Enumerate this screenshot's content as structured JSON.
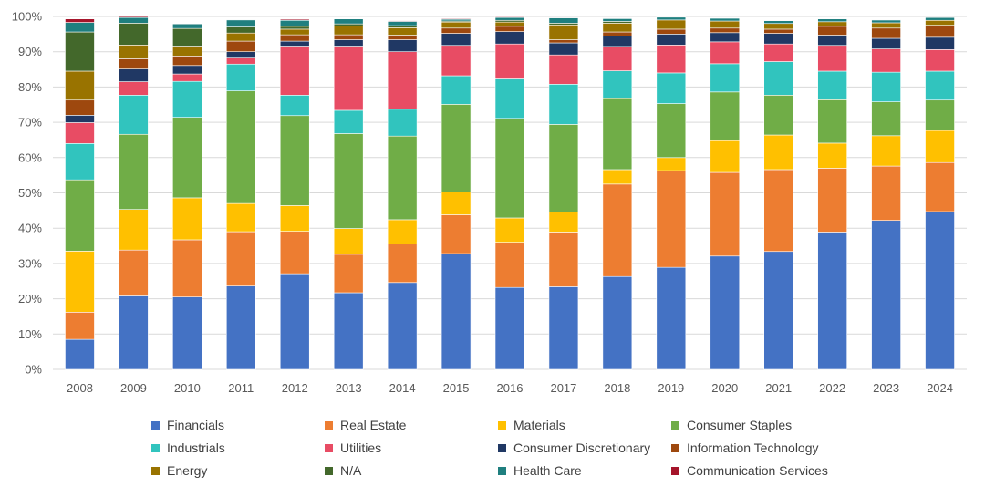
{
  "chart_data": {
    "type": "bar",
    "stacked": true,
    "percent": true,
    "title": "",
    "xlabel": "",
    "ylabel": "",
    "ylim": [
      0,
      100
    ],
    "yticks": [
      "0%",
      "10%",
      "20%",
      "30%",
      "40%",
      "50%",
      "60%",
      "70%",
      "80%",
      "90%",
      "100%"
    ],
    "grid": true,
    "legend_position": "bottom",
    "categories": [
      "2008",
      "2009",
      "2010",
      "2011",
      "2012",
      "2013",
      "2014",
      "2015",
      "2016",
      "2017",
      "2018",
      "2019",
      "2020",
      "2021",
      "2022",
      "2023",
      "2024"
    ],
    "series": [
      {
        "name": "Financials",
        "color": "#4472c4",
        "values": [
          8.5,
          20.8,
          20.5,
          23.6,
          27.1,
          21.7,
          24.6,
          32.8,
          23.2,
          23.4,
          26.3,
          28.9,
          32.1,
          33.4,
          38.9,
          42.2,
          44.7
        ]
      },
      {
        "name": "Real Estate",
        "color": "#ed7d31",
        "values": [
          7.7,
          13.0,
          16.2,
          15.4,
          12.0,
          10.9,
          10.9,
          11.0,
          12.8,
          15.5,
          26.2,
          27.4,
          23.7,
          23.2,
          18.1,
          15.4,
          13.9
        ]
      },
      {
        "name": "Materials",
        "color": "#ffc000",
        "values": [
          17.3,
          11.5,
          11.9,
          8.0,
          7.3,
          7.3,
          6.9,
          6.5,
          6.9,
          5.7,
          4.1,
          3.7,
          9.0,
          9.8,
          7.1,
          8.6,
          9.1
        ]
      },
      {
        "name": "Consumer Staples",
        "color": "#70ad47",
        "values": [
          20.2,
          21.3,
          22.8,
          31.9,
          25.5,
          26.9,
          23.7,
          24.8,
          28.2,
          24.8,
          20.1,
          15.3,
          13.8,
          11.3,
          12.3,
          9.6,
          8.6
        ]
      },
      {
        "name": "Industrials",
        "color": "#31c4be",
        "values": [
          10.3,
          11.1,
          10.2,
          7.6,
          5.8,
          6.6,
          7.6,
          8.1,
          11.2,
          11.4,
          7.9,
          8.7,
          8.0,
          9.5,
          8.1,
          8.4,
          8.2
        ]
      },
      {
        "name": "Utilities",
        "color": "#e84c64",
        "values": [
          5.9,
          3.8,
          2.1,
          1.7,
          13.9,
          18.2,
          16.3,
          8.6,
          9.9,
          8.3,
          6.9,
          7.9,
          6.2,
          5.0,
          7.3,
          6.6,
          6.1
        ]
      },
      {
        "name": "Consumer Discretionary",
        "color": "#203864",
        "values": [
          2.1,
          3.6,
          2.4,
          1.8,
          1.4,
          1.8,
          3.4,
          3.4,
          3.5,
          3.4,
          2.9,
          3.1,
          2.6,
          3.0,
          2.9,
          3.0,
          3.5
        ]
      },
      {
        "name": "Information Technology",
        "color": "#9e480e",
        "values": [
          4.3,
          2.9,
          2.7,
          3.0,
          1.8,
          1.4,
          1.3,
          1.5,
          1.5,
          0.9,
          1.2,
          1.4,
          1.3,
          1.2,
          2.5,
          2.9,
          3.4
        ]
      },
      {
        "name": "Energy",
        "color": "#997300",
        "values": [
          8.2,
          3.9,
          2.8,
          2.3,
          1.6,
          2.5,
          2.1,
          1.7,
          1.2,
          4.2,
          2.5,
          2.6,
          2.0,
          1.6,
          1.3,
          1.5,
          1.4
        ]
      },
      {
        "name": "N/A",
        "color": "#43682b",
        "values": [
          11.1,
          6.2,
          5.0,
          1.7,
          0.8,
          0.6,
          0.6,
          0.3,
          0.5,
          0.5,
          0.5,
          0.0,
          0.0,
          0.0,
          0.0,
          0.0,
          0.0
        ]
      },
      {
        "name": "Health Care",
        "color": "#1f7f7f",
        "values": [
          2.7,
          1.6,
          1.3,
          2.0,
          1.7,
          1.4,
          1.2,
          0.5,
          0.8,
          1.5,
          0.8,
          0.8,
          0.8,
          0.8,
          0.8,
          0.8,
          0.8
        ]
      },
      {
        "name": "Communication Services",
        "color": "#a5142a",
        "values": [
          1.0,
          0.3,
          0.1,
          0.0,
          0.3,
          0.0,
          0.2,
          0.2,
          0.2,
          0.1,
          0.1,
          0.1,
          0.1,
          0.1,
          0.1,
          0.1,
          0.1
        ]
      }
    ]
  }
}
